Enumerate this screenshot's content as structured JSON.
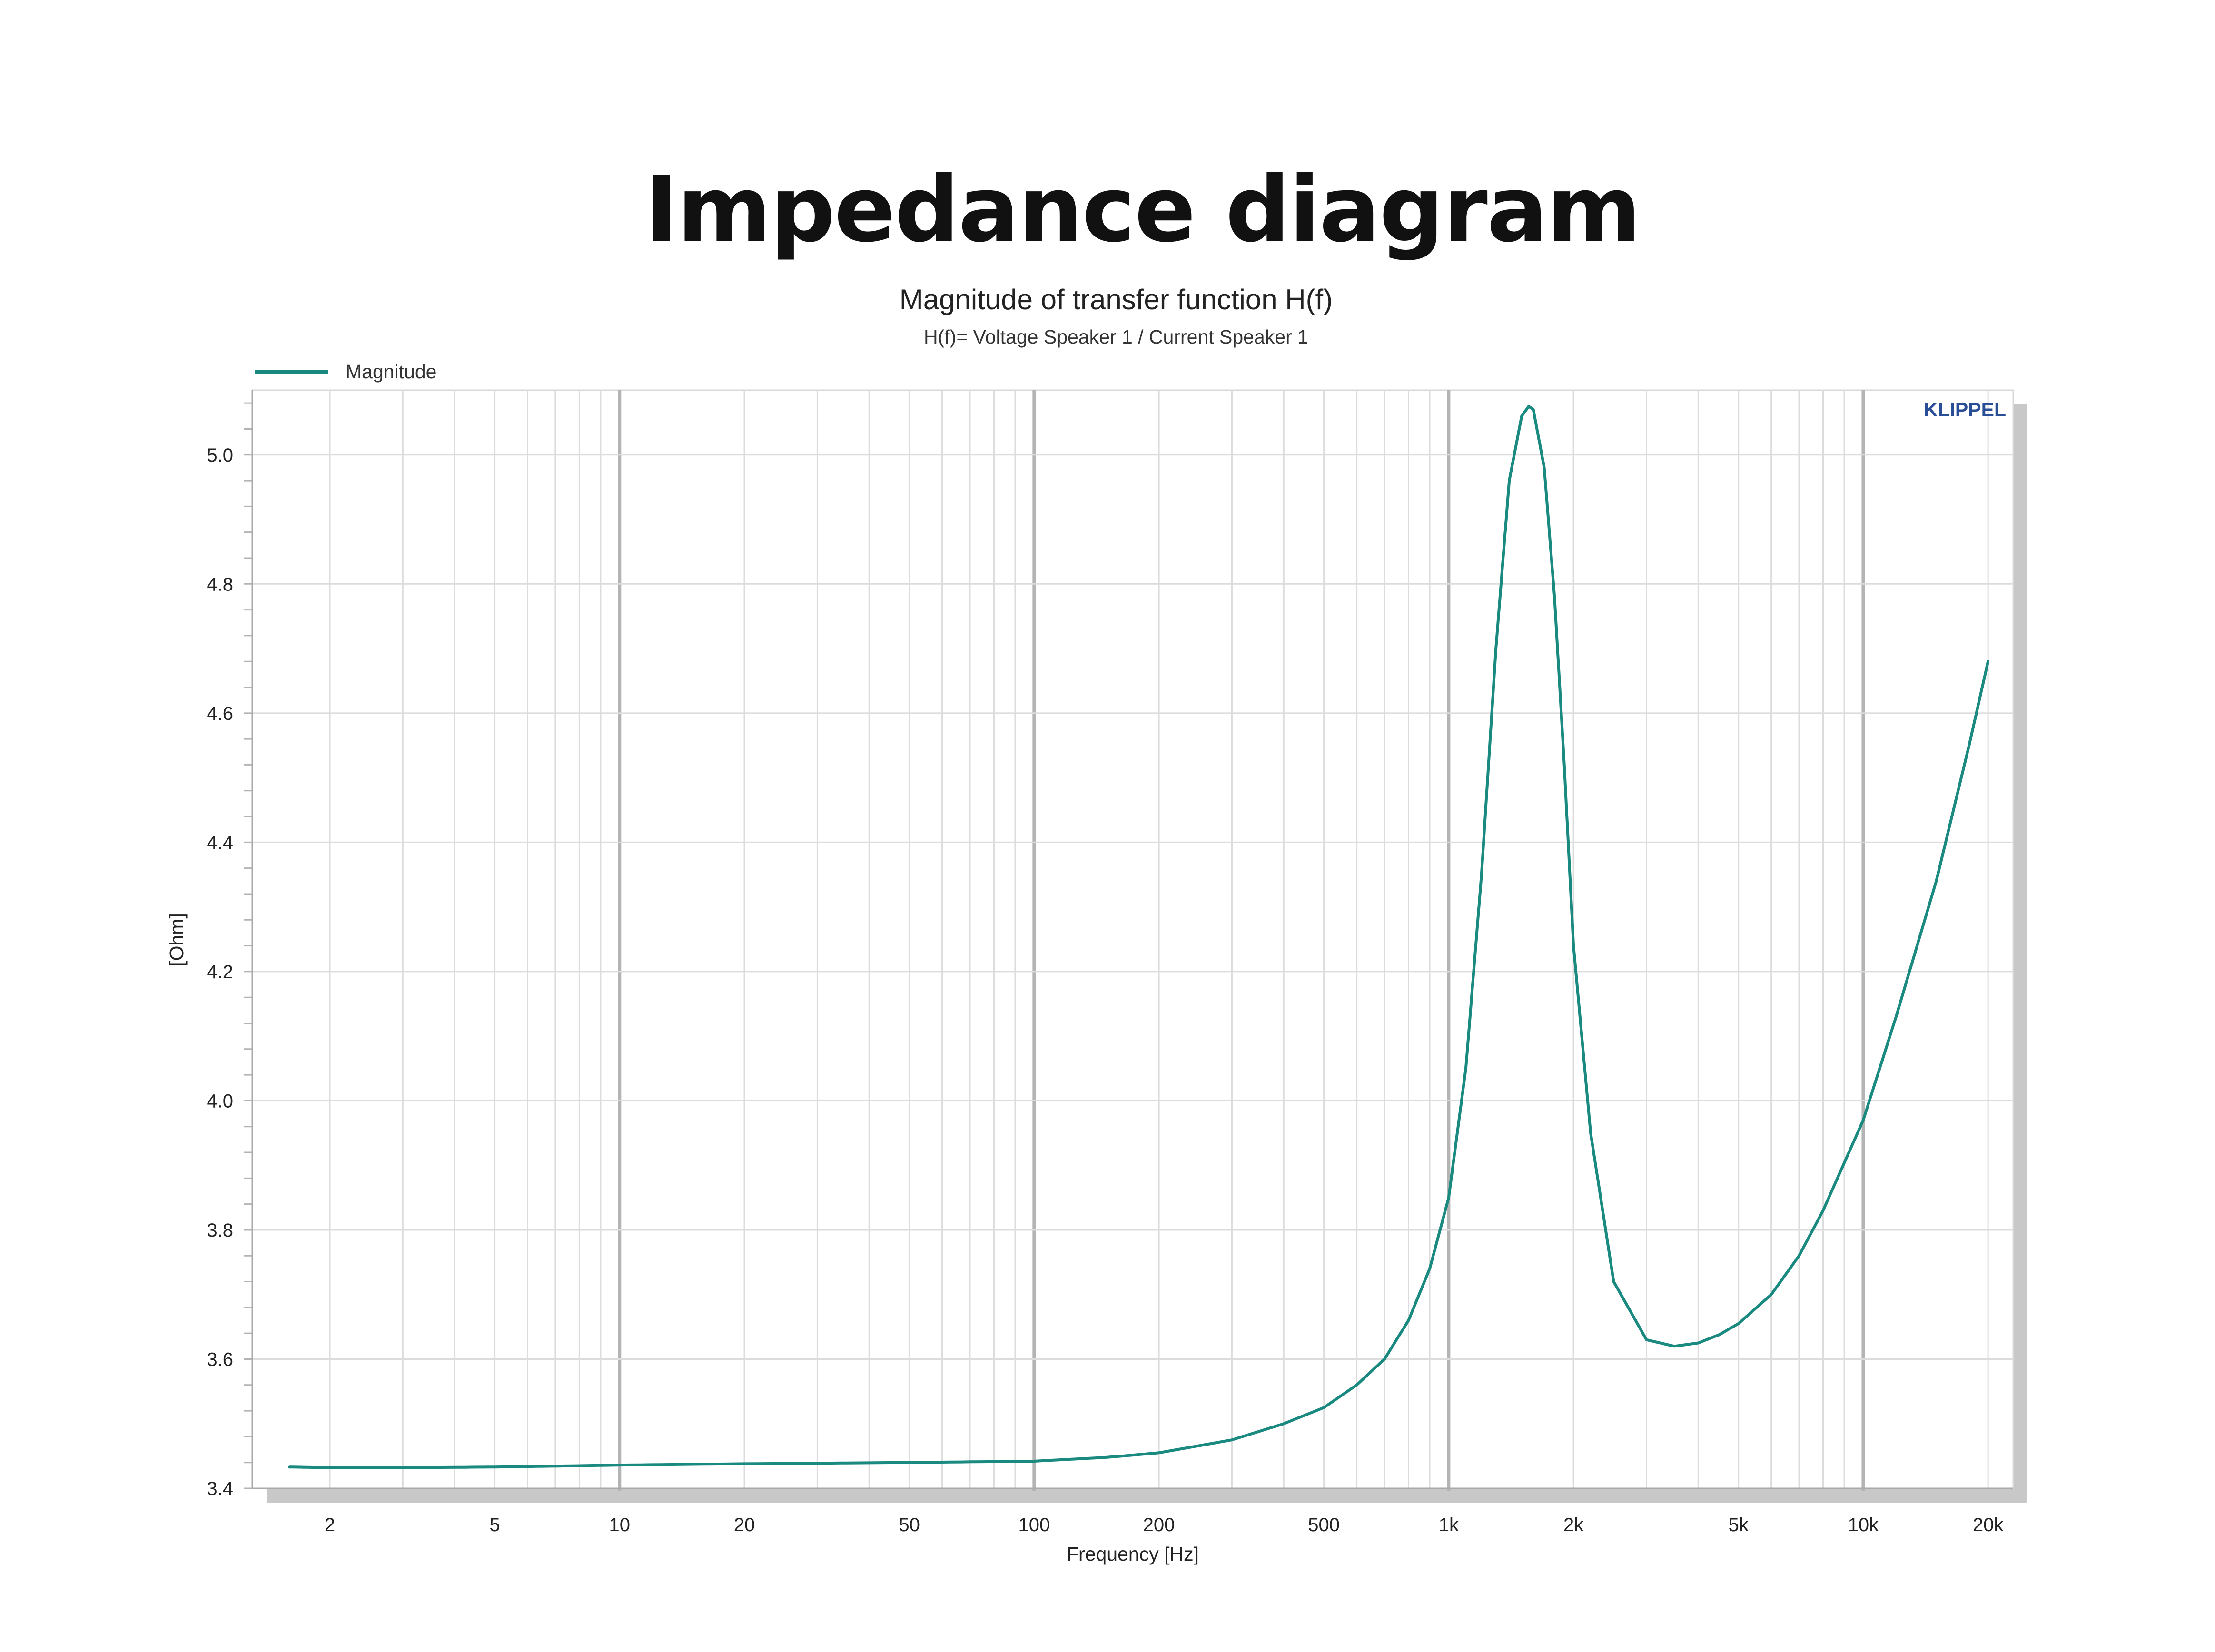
{
  "page_title": "Impedance diagram",
  "chart_data": {
    "type": "line",
    "title": "Magnitude of transfer function H(f)",
    "subtitle": "H(f)= Voltage Speaker 1 / Current Speaker 1",
    "xlabel": "Frequency [Hz]",
    "ylabel": "[Ohm]",
    "x_scale": "log",
    "xlim": [
      1.3,
      23000
    ],
    "ylim": [
      3.4,
      5.1
    ],
    "x_ticks": [
      {
        "value": 2,
        "label": "2"
      },
      {
        "value": 5,
        "label": "5"
      },
      {
        "value": 10,
        "label": "10"
      },
      {
        "value": 20,
        "label": "20"
      },
      {
        "value": 50,
        "label": "50"
      },
      {
        "value": 100,
        "label": "100"
      },
      {
        "value": 200,
        "label": "200"
      },
      {
        "value": 500,
        "label": "500"
      },
      {
        "value": 1000,
        "label": "1k"
      },
      {
        "value": 2000,
        "label": "2k"
      },
      {
        "value": 5000,
        "label": "5k"
      },
      {
        "value": 10000,
        "label": "10k"
      },
      {
        "value": 20000,
        "label": "20k"
      }
    ],
    "y_ticks": [
      {
        "value": 3.4,
        "label": "3.4"
      },
      {
        "value": 3.6,
        "label": "3.6"
      },
      {
        "value": 3.8,
        "label": "3.8"
      },
      {
        "value": 4.0,
        "label": "4.0"
      },
      {
        "value": 4.2,
        "label": "4.2"
      },
      {
        "value": 4.4,
        "label": "4.4"
      },
      {
        "value": 4.6,
        "label": "4.6"
      },
      {
        "value": 4.8,
        "label": "4.8"
      },
      {
        "value": 5.0,
        "label": "5.0"
      }
    ],
    "legend": {
      "position": "top-left",
      "entries": [
        "Magnitude"
      ]
    },
    "watermark": "KLIPPEL",
    "grid": true,
    "series": [
      {
        "name": "Magnitude",
        "color": "#1a8a80",
        "x": [
          1.6,
          2,
          3,
          5,
          8,
          10,
          20,
          50,
          100,
          150,
          200,
          300,
          400,
          500,
          600,
          700,
          800,
          900,
          1000,
          1100,
          1200,
          1300,
          1400,
          1500,
          1560,
          1600,
          1700,
          1800,
          1900,
          2000,
          2200,
          2500,
          3000,
          3500,
          4000,
          4500,
          5000,
          6000,
          7000,
          8000,
          10000,
          12000,
          15000,
          18000,
          20000
        ],
        "values": [
          3.433,
          3.432,
          3.432,
          3.433,
          3.435,
          3.436,
          3.438,
          3.44,
          3.442,
          3.448,
          3.455,
          3.475,
          3.5,
          3.525,
          3.56,
          3.6,
          3.66,
          3.74,
          3.85,
          4.05,
          4.35,
          4.7,
          4.96,
          5.06,
          5.075,
          5.07,
          4.98,
          4.78,
          4.52,
          4.24,
          3.95,
          3.72,
          3.63,
          3.62,
          3.625,
          3.638,
          3.655,
          3.7,
          3.76,
          3.83,
          3.97,
          4.13,
          4.34,
          4.55,
          4.68
        ]
      }
    ]
  }
}
